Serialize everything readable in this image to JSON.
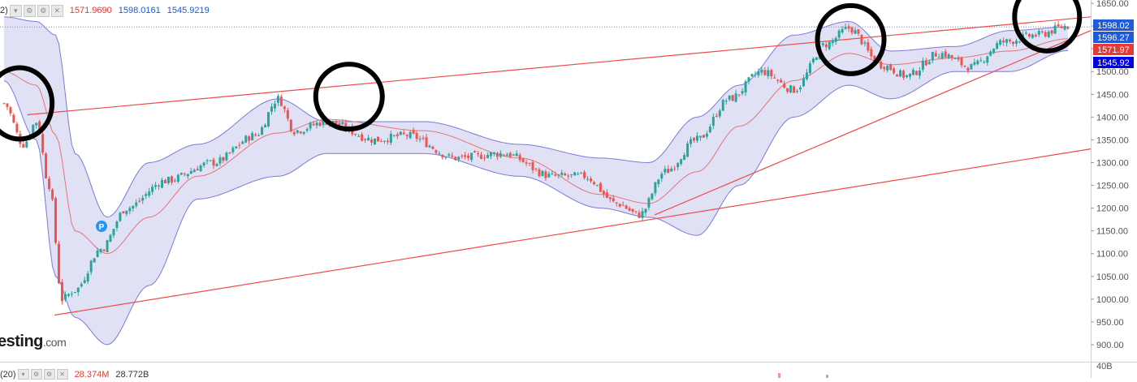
{
  "header": {
    "indicator_prefix": "2)",
    "dropdown_icon": "chevron-down-icon",
    "settings_icon": "gear-icon",
    "close_icon": "close-icon",
    "bb_middle": "1571.9690",
    "bb_upper": "1598.0161",
    "bb_lower": "1545.9219",
    "colors": {
      "middle": "#e53935",
      "upper": "#1e5bd8",
      "lower": "#1e5bd8"
    }
  },
  "volume_header": {
    "prefix": "(20)",
    "val1": "28.374M",
    "val2": "28.772B",
    "colors": {
      "val1": "#e53935",
      "val2": "#333333"
    }
  },
  "watermark": {
    "main": "esting",
    "suffix": ".com"
  },
  "marker": {
    "label": "P",
    "color": "#2196f3"
  },
  "chart_data": {
    "type": "candlestick",
    "title": "",
    "y_axis": {
      "ticks": [
        "1650.00",
        "1600.00",
        "1550.00",
        "1500.00",
        "1450.00",
        "1400.00",
        "1350.00",
        "1300.00",
        "1250.00",
        "1200.00",
        "1150.00",
        "1100.00",
        "1050.00",
        "1000.00",
        "950.00",
        "900.00"
      ],
      "ylim": [
        880,
        1660
      ]
    },
    "price_labels": [
      {
        "text": "1598.02",
        "value": 1598.02,
        "bg": "#1e5bd8",
        "color": "#ffffff"
      },
      {
        "text": "1596.27",
        "value": 1596.27,
        "bg": "#1e5bd8",
        "color": "#ffffff"
      },
      {
        "text": "1571.97",
        "value": 1571.97,
        "bg": "#e53935",
        "color": "#ffffff"
      },
      {
        "text": "1545.92",
        "value": 1545.92,
        "bg": "#0000e6",
        "color": "#ffffff"
      }
    ],
    "volume_axis_label": "40B",
    "bollinger_control_points": [
      {
        "i": 0,
        "mid": 1500,
        "up": 1620,
        "low": 1480
      },
      {
        "i": 10,
        "mid": 1470,
        "up": 1610,
        "low": 1350
      },
      {
        "i": 16,
        "mid": 1360,
        "up": 1580,
        "low": 1050
      },
      {
        "i": 22,
        "mid": 1150,
        "up": 1320,
        "low": 960
      },
      {
        "i": 32,
        "mid": 1100,
        "up": 1180,
        "low": 900
      },
      {
        "i": 45,
        "mid": 1180,
        "up": 1300,
        "low": 1030
      },
      {
        "i": 60,
        "mid": 1270,
        "up": 1340,
        "low": 1220
      },
      {
        "i": 85,
        "mid": 1365,
        "up": 1440,
        "low": 1270
      },
      {
        "i": 100,
        "mid": 1395,
        "up": 1390,
        "low": 1320
      },
      {
        "i": 130,
        "mid": 1370,
        "up": 1390,
        "low": 1320
      },
      {
        "i": 160,
        "mid": 1310,
        "up": 1340,
        "low": 1270
      },
      {
        "i": 185,
        "mid": 1230,
        "up": 1310,
        "low": 1200
      },
      {
        "i": 200,
        "mid": 1210,
        "up": 1300,
        "low": 1180
      },
      {
        "i": 215,
        "mid": 1280,
        "up": 1400,
        "low": 1140
      },
      {
        "i": 228,
        "mid": 1380,
        "up": 1470,
        "low": 1250
      },
      {
        "i": 245,
        "mid": 1480,
        "up": 1580,
        "low": 1400
      },
      {
        "i": 262,
        "mid": 1540,
        "up": 1610,
        "low": 1470
      },
      {
        "i": 275,
        "mid": 1515,
        "up": 1545,
        "low": 1440
      },
      {
        "i": 295,
        "mid": 1530,
        "up": 1555,
        "low": 1500
      },
      {
        "i": 312,
        "mid": 1545,
        "up": 1590,
        "low": 1500
      },
      {
        "i": 330,
        "mid": 1572,
        "up": 1598,
        "low": 1546
      }
    ],
    "candle_path_points": [
      {
        "i": 0,
        "c": 1430
      },
      {
        "i": 6,
        "c": 1340
      },
      {
        "i": 10,
        "c": 1390
      },
      {
        "i": 14,
        "c": 1250
      },
      {
        "i": 18,
        "c": 1000
      },
      {
        "i": 22,
        "c": 1020
      },
      {
        "i": 30,
        "c": 1110
      },
      {
        "i": 38,
        "c": 1200
      },
      {
        "i": 50,
        "c": 1260
      },
      {
        "i": 65,
        "c": 1300
      },
      {
        "i": 78,
        "c": 1360
      },
      {
        "i": 85,
        "c": 1440
      },
      {
        "i": 90,
        "c": 1370
      },
      {
        "i": 100,
        "c": 1390
      },
      {
        "i": 115,
        "c": 1350
      },
      {
        "i": 125,
        "c": 1360
      },
      {
        "i": 140,
        "c": 1310
      },
      {
        "i": 155,
        "c": 1320
      },
      {
        "i": 170,
        "c": 1270
      },
      {
        "i": 180,
        "c": 1270
      },
      {
        "i": 190,
        "c": 1210
      },
      {
        "i": 197,
        "c": 1185
      },
      {
        "i": 205,
        "c": 1280
      },
      {
        "i": 215,
        "c": 1350
      },
      {
        "i": 225,
        "c": 1440
      },
      {
        "i": 235,
        "c": 1500
      },
      {
        "i": 245,
        "c": 1460
      },
      {
        "i": 255,
        "c": 1560
      },
      {
        "i": 262,
        "c": 1595
      },
      {
        "i": 272,
        "c": 1515
      },
      {
        "i": 280,
        "c": 1490
      },
      {
        "i": 290,
        "c": 1540
      },
      {
        "i": 300,
        "c": 1510
      },
      {
        "i": 310,
        "c": 1565
      },
      {
        "i": 320,
        "c": 1580
      },
      {
        "i": 330,
        "c": 1600
      }
    ],
    "candle_count": 331,
    "trendlines": [
      {
        "x1": 0.025,
        "y1": 1405,
        "x2": 1.0,
        "y2": 1620
      },
      {
        "x1": 0.05,
        "y1": 965,
        "x2": 1.0,
        "y2": 1330
      },
      {
        "x1": 0.6,
        "y1": 1185,
        "x2": 1.0,
        "y2": 1590
      }
    ],
    "circles": [
      {
        "cx": 0.018,
        "cy": 1430
      },
      {
        "cx": 0.32,
        "cy": 1445
      },
      {
        "cx": 0.78,
        "cy": 1570
      },
      {
        "cx": 0.96,
        "cy": 1620
      }
    ],
    "colors": {
      "bull": "#26a69a",
      "bear": "#ef5350",
      "band_fill": "#dcdcf5",
      "band_line": "#7a7ad8",
      "mid_line": "#e57373",
      "trend": "#ef4a4a",
      "circle": "#000000"
    }
  }
}
